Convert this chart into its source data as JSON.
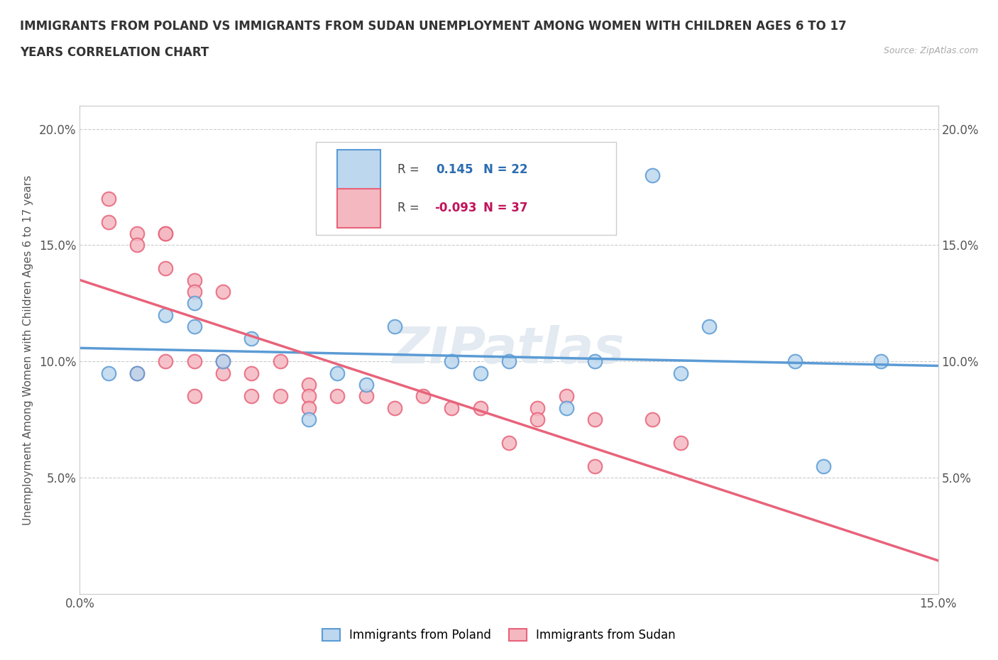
{
  "title_line1": "IMMIGRANTS FROM POLAND VS IMMIGRANTS FROM SUDAN UNEMPLOYMENT AMONG WOMEN WITH CHILDREN AGES 6 TO 17",
  "title_line2": "YEARS CORRELATION CHART",
  "source_text": "Source: ZipAtlas.com",
  "ylabel": "Unemployment Among Women with Children Ages 6 to 17 years",
  "xlim": [
    0.0,
    0.15
  ],
  "ylim": [
    0.0,
    0.21
  ],
  "x_ticks": [
    0.0,
    0.025,
    0.05,
    0.075,
    0.1,
    0.125,
    0.15
  ],
  "y_ticks": [
    0.0,
    0.05,
    0.1,
    0.15,
    0.2
  ],
  "poland_color": "#5b9bd5",
  "poland_fill": "#bdd7ee",
  "sudan_color": "#e8637a",
  "sudan_fill": "#f4b8c1",
  "poland_R": 0.145,
  "poland_N": 22,
  "sudan_R": -0.093,
  "sudan_N": 37,
  "watermark": "ZIPatlas",
  "grid_color": "#cccccc",
  "background_color": "#ffffff",
  "poland_x": [
    0.005,
    0.01,
    0.015,
    0.02,
    0.02,
    0.025,
    0.03,
    0.04,
    0.045,
    0.05,
    0.055,
    0.065,
    0.07,
    0.075,
    0.085,
    0.09,
    0.1,
    0.105,
    0.11,
    0.125,
    0.13,
    0.14
  ],
  "poland_y": [
    0.095,
    0.095,
    0.12,
    0.125,
    0.115,
    0.1,
    0.11,
    0.075,
    0.095,
    0.09,
    0.115,
    0.1,
    0.095,
    0.1,
    0.08,
    0.1,
    0.18,
    0.095,
    0.115,
    0.1,
    0.055,
    0.1
  ],
  "sudan_x": [
    0.005,
    0.005,
    0.01,
    0.01,
    0.01,
    0.015,
    0.015,
    0.015,
    0.015,
    0.02,
    0.02,
    0.02,
    0.02,
    0.025,
    0.025,
    0.025,
    0.03,
    0.03,
    0.035,
    0.035,
    0.04,
    0.04,
    0.04,
    0.045,
    0.05,
    0.055,
    0.06,
    0.065,
    0.07,
    0.075,
    0.08,
    0.08,
    0.085,
    0.09,
    0.09,
    0.1,
    0.105
  ],
  "sudan_y": [
    0.17,
    0.16,
    0.155,
    0.15,
    0.095,
    0.155,
    0.155,
    0.14,
    0.1,
    0.135,
    0.13,
    0.1,
    0.085,
    0.13,
    0.1,
    0.095,
    0.095,
    0.085,
    0.1,
    0.085,
    0.09,
    0.085,
    0.08,
    0.085,
    0.085,
    0.08,
    0.085,
    0.08,
    0.08,
    0.065,
    0.08,
    0.075,
    0.085,
    0.075,
    0.055,
    0.075,
    0.065
  ],
  "legend_poland_label": "Immigrants from Poland",
  "legend_sudan_label": "Immigrants from Sudan"
}
